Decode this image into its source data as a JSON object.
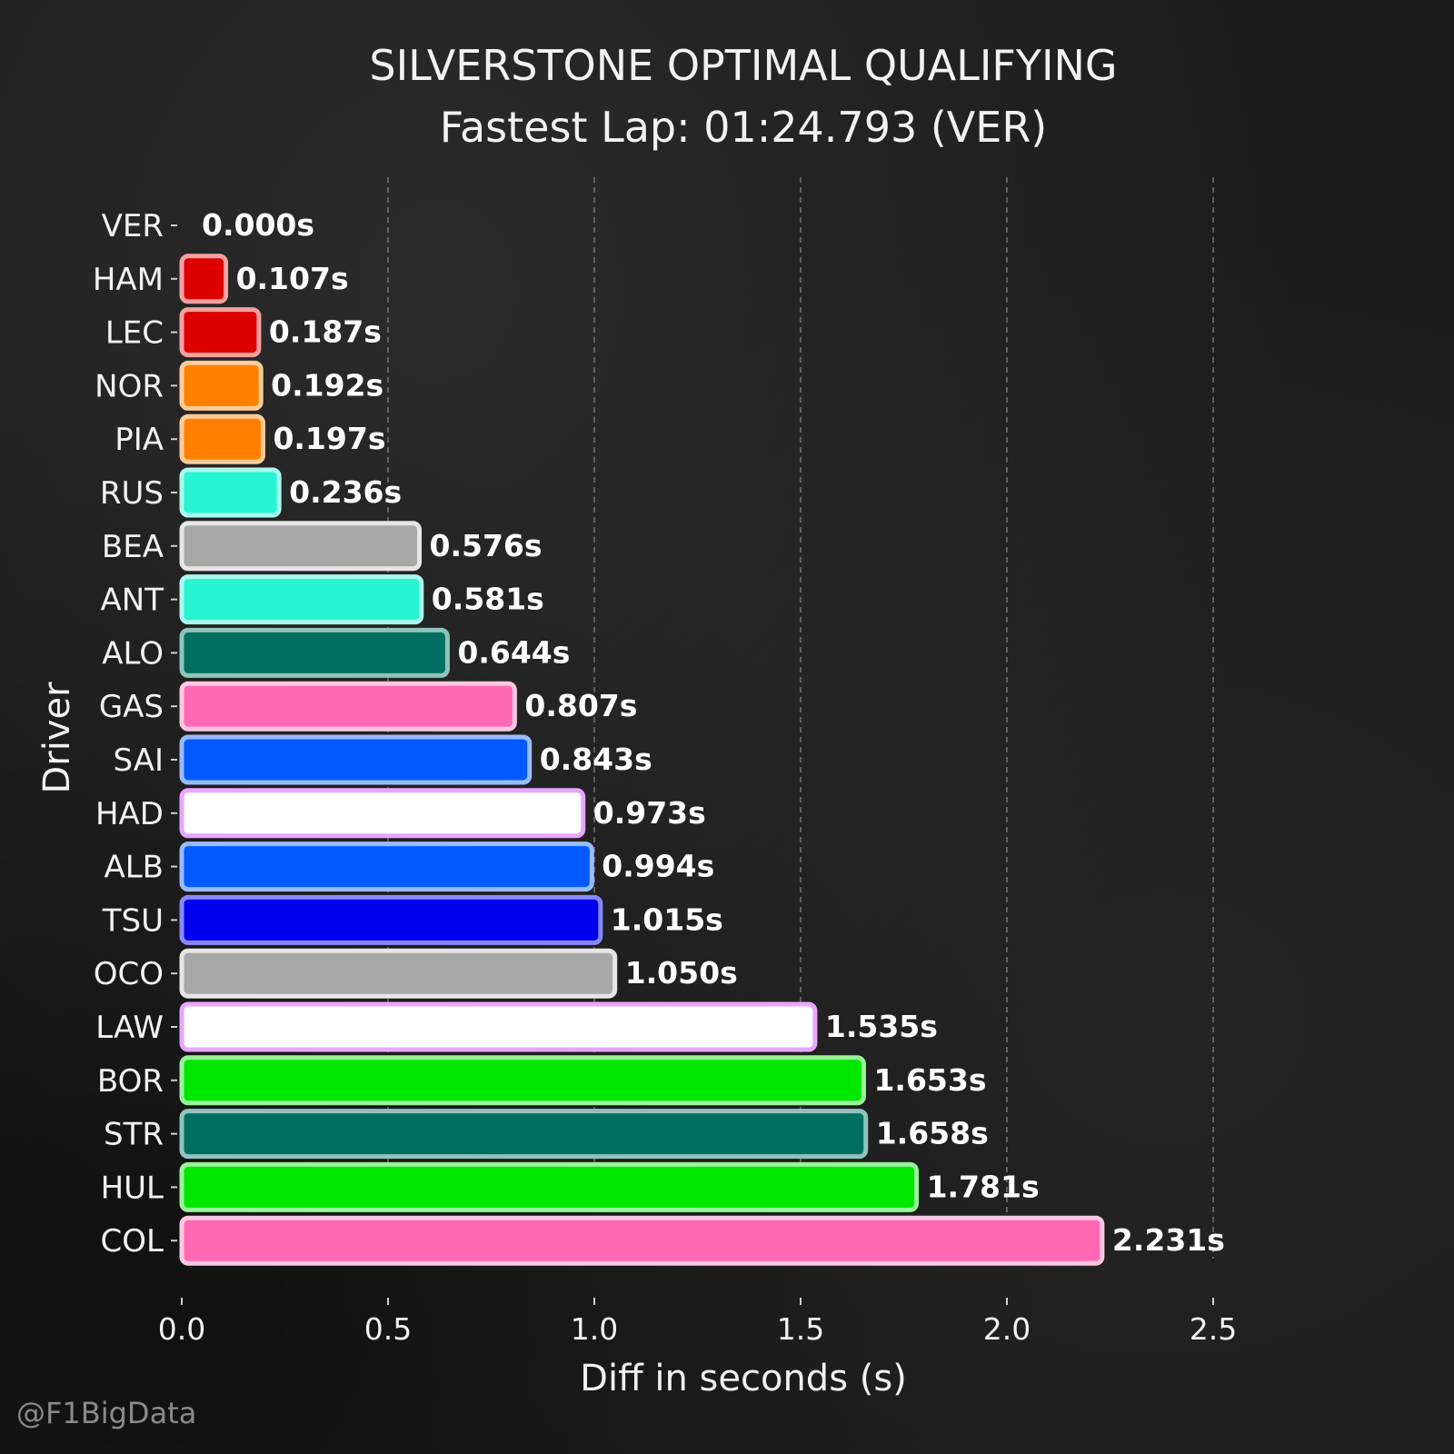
{
  "watermark": "@F1BigData",
  "chart_data": {
    "type": "bar",
    "orientation": "horizontal",
    "title": "SILVERSTONE OPTIMAL QUALIFYING",
    "subtitle": "Fastest Lap: 01:24.793 (VER)",
    "xlabel": "Diff in seconds (s)",
    "ylabel": "Driver",
    "xlim": [
      0,
      2.5
    ],
    "xticks": [
      "0.0",
      "0.5",
      "1.0",
      "1.5",
      "2.0",
      "2.5"
    ],
    "grid": "vertical dashed",
    "categories": [
      "VER",
      "HAM",
      "LEC",
      "NOR",
      "PIA",
      "RUS",
      "BEA",
      "ANT",
      "ALO",
      "GAS",
      "SAI",
      "HAD",
      "ALB",
      "TSU",
      "OCO",
      "LAW",
      "BOR",
      "STR",
      "HUL",
      "COL"
    ],
    "values": [
      0.0,
      0.107,
      0.187,
      0.192,
      0.197,
      0.236,
      0.576,
      0.581,
      0.644,
      0.807,
      0.843,
      0.973,
      0.994,
      1.015,
      1.05,
      1.535,
      1.653,
      1.658,
      1.781,
      2.231
    ],
    "value_labels": [
      "0.000s",
      "0.107s",
      "0.187s",
      "0.192s",
      "0.197s",
      "0.236s",
      "0.576s",
      "0.581s",
      "0.644s",
      "0.807s",
      "0.843s",
      "0.973s",
      "0.994s",
      "1.015s",
      "1.050s",
      "1.535s",
      "1.653s",
      "1.658s",
      "1.781s",
      "2.231s"
    ],
    "colors": [
      "#1e41ff",
      "#dc0000",
      "#dc0000",
      "#ff8000",
      "#ff8000",
      "#27f4d2",
      "#a8a8a8",
      "#27f4d2",
      "#006f62",
      "#ff69b4",
      "#005aff",
      "#ffffff",
      "#005aff",
      "#0000ee",
      "#a8a8a8",
      "#ffffff",
      "#00e700",
      "#006f62",
      "#00e700",
      "#ff69b4"
    ],
    "edge_colors": [
      "#8aa0ff",
      "#f5a0a0",
      "#f5a0a0",
      "#ffcc99",
      "#ffcc99",
      "#a9f9ec",
      "#e6e6e6",
      "#a9f9ec",
      "#8fc4bc",
      "#ffc8e2",
      "#99bbff",
      "#e8a6ff",
      "#99bbff",
      "#8888ff",
      "#e6e6e6",
      "#e8a6ff",
      "#99f399",
      "#8fc4bc",
      "#99f399",
      "#ffc8e2"
    ]
  }
}
